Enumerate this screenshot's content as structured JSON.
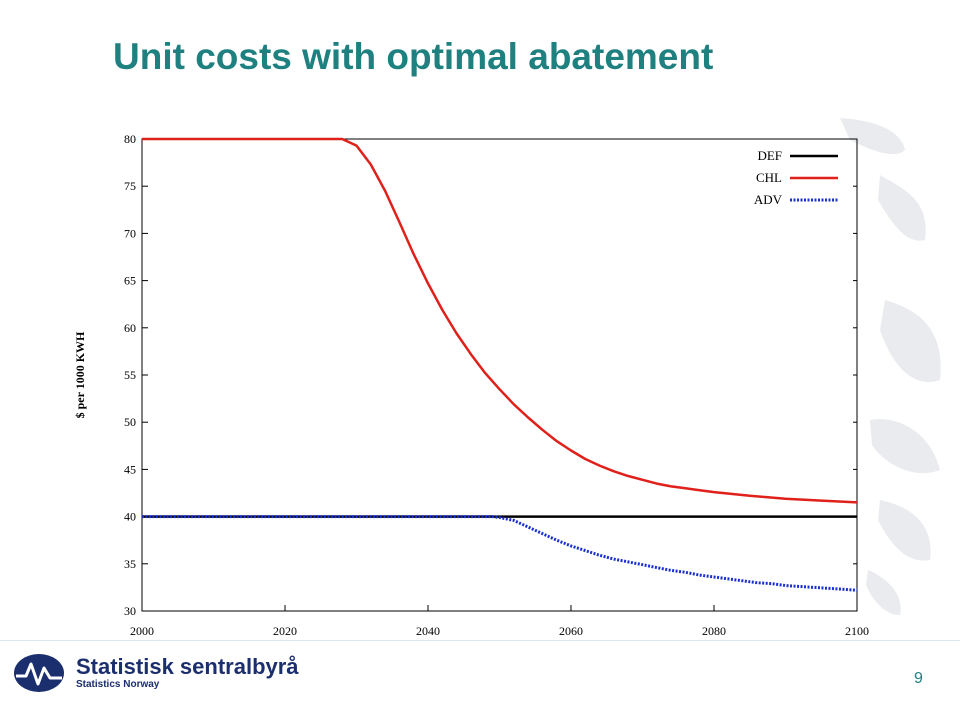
{
  "slide": {
    "title": "Unit costs with optimal abatement",
    "page_number": "9"
  },
  "footer": {
    "org_name": "Statistisk sentralbyrå",
    "org_subtitle": "Statistics Norway",
    "logo_icon": "ssb-globe-wave-logo-icon",
    "brand_color": "#1b2e6e",
    "accent_color": "#1f8080"
  },
  "chart_data": {
    "type": "line",
    "title": "",
    "xlabel": "",
    "ylabel": "$ per 1000 KWH",
    "xlim": [
      2000,
      2100
    ],
    "ylim": [
      30,
      80
    ],
    "x_ticks": [
      2000,
      2020,
      2040,
      2060,
      2080,
      2100
    ],
    "y_ticks": [
      30,
      35,
      40,
      45,
      50,
      55,
      60,
      65,
      70,
      75,
      80
    ],
    "grid": false,
    "legend_position": "top-right",
    "series": [
      {
        "name": "DEF",
        "color": "#000000",
        "style": "solid",
        "x": [
          2000,
          2100
        ],
        "y": [
          40,
          40
        ]
      },
      {
        "name": "CHL",
        "color": "#e0201a",
        "style": "solid",
        "x": [
          2000,
          2010,
          2020,
          2028,
          2030,
          2032,
          2034,
          2036,
          2038,
          2040,
          2042,
          2044,
          2046,
          2048,
          2050,
          2052,
          2054,
          2056,
          2058,
          2060,
          2062,
          2064,
          2066,
          2068,
          2070,
          2072,
          2074,
          2076,
          2078,
          2080,
          2085,
          2090,
          2095,
          2100
        ],
        "y": [
          80,
          80,
          80,
          80,
          79.3,
          77.3,
          74.5,
          71.2,
          67.8,
          64.7,
          61.9,
          59.4,
          57.2,
          55.2,
          53.5,
          51.9,
          50.5,
          49.2,
          48.0,
          47.0,
          46.1,
          45.4,
          44.8,
          44.3,
          43.9,
          43.5,
          43.2,
          43.0,
          42.8,
          42.6,
          42.2,
          41.9,
          41.7,
          41.5
        ]
      },
      {
        "name": "ADV",
        "color": "#1a2fd0",
        "style": "dotted",
        "x": [
          2000,
          2010,
          2020,
          2030,
          2040,
          2049,
          2050,
          2052,
          2054,
          2056,
          2058,
          2060,
          2062,
          2064,
          2066,
          2068,
          2070,
          2072,
          2074,
          2076,
          2078,
          2080,
          2082,
          2084,
          2086,
          2088,
          2090,
          2092,
          2094,
          2096,
          2098,
          2100
        ],
        "y": [
          40,
          40,
          40,
          40,
          40,
          40,
          39.9,
          39.6,
          38.9,
          38.2,
          37.5,
          36.9,
          36.4,
          35.9,
          35.5,
          35.2,
          34.9,
          34.6,
          34.3,
          34.1,
          33.8,
          33.6,
          33.4,
          33.2,
          33.0,
          32.9,
          32.7,
          32.6,
          32.5,
          32.4,
          32.3,
          32.2
        ]
      }
    ]
  }
}
